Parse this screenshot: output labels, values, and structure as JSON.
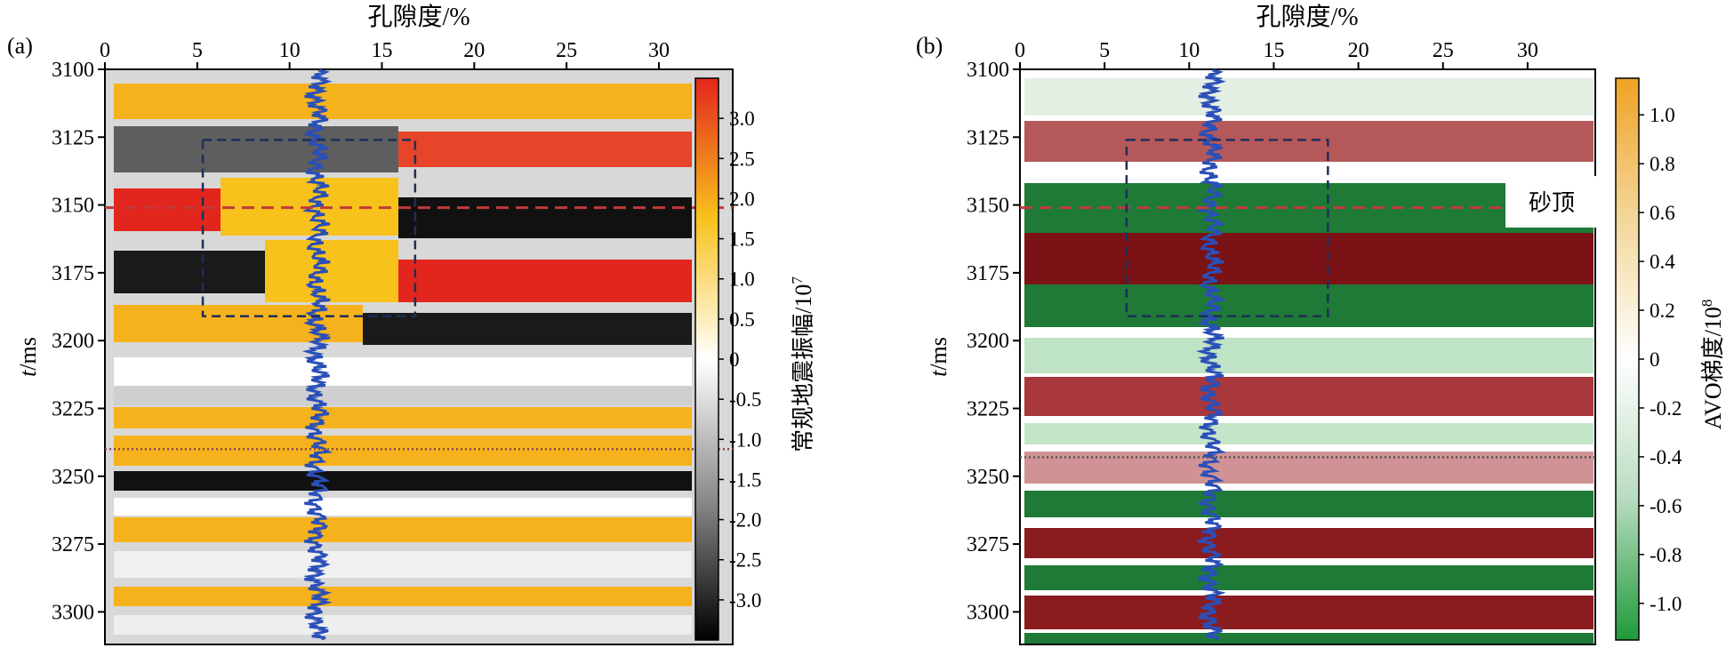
{
  "chart_data": [
    {
      "type": "heatmap",
      "panel_label": "(a)",
      "xlabel": "孔隙度/%",
      "ylabel_italic": "t",
      "ylabel_unit": "/ms",
      "xlim": [
        0,
        34
      ],
      "ylim": [
        3100,
        3312
      ],
      "x_ticks": [
        0,
        5,
        10,
        15,
        20,
        25,
        30
      ],
      "y_ticks": [
        3100,
        3125,
        3150,
        3175,
        3200,
        3225,
        3250,
        3275,
        3300
      ],
      "colorbar": {
        "label": "常规地震振幅/10",
        "label_exponent": "7",
        "range": [
          -3.5,
          3.5
        ],
        "ticks": [
          "3.0",
          "2.5",
          "2.0",
          "1.5",
          "1.0",
          "0.5",
          "0",
          "-0.5",
          "-1.0",
          "-1.5",
          "-2.0",
          "-2.5",
          "-3.0"
        ],
        "tick_values": [
          3.0,
          2.5,
          2.0,
          1.5,
          1.0,
          0.5,
          0,
          -0.5,
          -1.0,
          -1.5,
          -2.0,
          -2.5,
          -3.0
        ],
        "colors": [
          "#000000",
          "#8a8a8a",
          "#ffffff",
          "#f8c21c",
          "#e3261d"
        ]
      },
      "reference_lines": [
        {
          "t": 3151,
          "style": "dashed",
          "color": "#c23a3a"
        },
        {
          "t": 3240,
          "style": "dotted",
          "color": "#8a4a4a"
        }
      ],
      "box": {
        "x": [
          5.3,
          16.8
        ],
        "t": [
          3126,
          3191
        ]
      },
      "well_log": {
        "color": "#2a4fb8",
        "center_porosity": 11.5,
        "t_range": [
          3100,
          3310
        ]
      },
      "annotation": ""
    },
    {
      "type": "heatmap",
      "panel_label": "(b)",
      "xlabel": "孔隙度/%",
      "ylabel_italic": "t",
      "ylabel_unit": "/ms",
      "xlim": [
        0,
        34
      ],
      "ylim": [
        3100,
        3312
      ],
      "x_ticks": [
        0,
        5,
        10,
        15,
        20,
        25,
        30
      ],
      "y_ticks": [
        3100,
        3125,
        3150,
        3175,
        3200,
        3225,
        3250,
        3275,
        3300
      ],
      "colorbar": {
        "label": "AVO梯度/10",
        "label_exponent": "8",
        "range": [
          -1.15,
          1.15
        ],
        "ticks": [
          "1.0",
          "0.8",
          "0.6",
          "0.4",
          "0.2",
          "0",
          "-0.2",
          "-0.4",
          "-0.6",
          "-0.8",
          "-1.0"
        ],
        "tick_values": [
          1.0,
          0.8,
          0.6,
          0.4,
          0.2,
          0,
          -0.2,
          -0.4,
          -0.6,
          -0.8,
          -1.0
        ],
        "colors": [
          "#1e9a3a",
          "#b8dcbf",
          "#ffffff",
          "#f3d79a",
          "#f0a224"
        ]
      },
      "reference_lines": [
        {
          "t": 3151,
          "style": "dashed",
          "color": "#c23a3a"
        },
        {
          "t": 3243,
          "style": "dotted",
          "color": "#555555"
        }
      ],
      "box": {
        "x": [
          6.3,
          18.2
        ],
        "t": [
          3126,
          3191
        ]
      },
      "well_log": {
        "color": "#2a4fb8",
        "center_porosity": 11.3,
        "t_range": [
          3100,
          3310
        ]
      },
      "annotation": "砂顶"
    }
  ]
}
